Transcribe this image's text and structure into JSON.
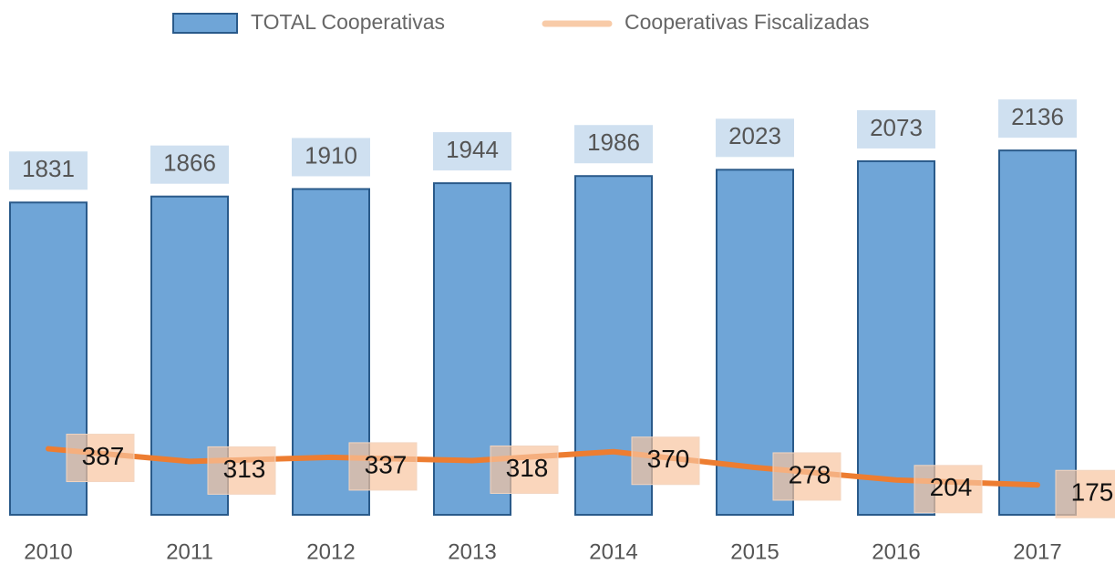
{
  "chart_data": {
    "type": "bar",
    "categories": [
      "2010",
      "2011",
      "2012",
      "2013",
      "2014",
      "2015",
      "2016",
      "2017"
    ],
    "series": [
      {
        "name": "TOTAL Cooperativas",
        "type": "bar",
        "color": "#6fa5d7",
        "values": [
          1831,
          1866,
          1910,
          1944,
          1986,
          2023,
          2073,
          2136
        ]
      },
      {
        "name": "Cooperativas Fiscalizadas",
        "type": "line",
        "color": "#ed7d31",
        "values": [
          387,
          313,
          337,
          318,
          370,
          278,
          204,
          175
        ]
      }
    ],
    "ylim": [
      0,
      2500
    ]
  }
}
